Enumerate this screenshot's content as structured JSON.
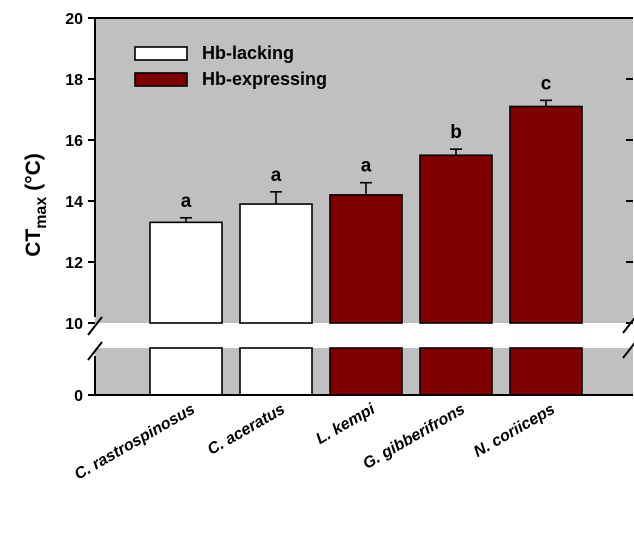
{
  "chart_data": {
    "type": "bar",
    "title": "",
    "ylabel_main": "CT",
    "ylabel_sub": "max",
    "ylabel_unit": "(°C)",
    "ylim": [
      10,
      20
    ],
    "yticks": [
      10,
      12,
      14,
      16,
      18,
      20
    ],
    "ybreak_ticks": [
      0
    ],
    "axis_break": true,
    "categories": [
      "C. rastrospinosus",
      "C. aceratus",
      "L. kempi",
      "G. gibberifrons",
      "N. coriiceps"
    ],
    "values": [
      13.3,
      13.9,
      14.2,
      15.5,
      17.1
    ],
    "errors": [
      0.15,
      0.4,
      0.4,
      0.2,
      0.2
    ],
    "significance": [
      "a",
      "a",
      "a",
      "b",
      "c"
    ],
    "groups": [
      "Hb-lacking",
      "Hb-lacking",
      "Hb-expressing",
      "Hb-expressing",
      "Hb-expressing"
    ],
    "legend": [
      {
        "name": "Hb-lacking",
        "color": "#ffffff"
      },
      {
        "name": "Hb-expressing",
        "color": "#800000"
      }
    ],
    "legend_position": "top-left",
    "colors": {
      "background": "#c0c0c0",
      "lacking": "#ffffff",
      "expressing": "#800000"
    },
    "grid": false
  }
}
